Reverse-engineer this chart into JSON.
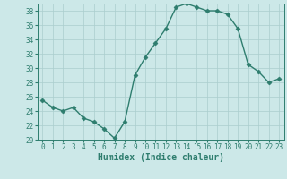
{
  "x": [
    0,
    1,
    2,
    3,
    4,
    5,
    6,
    7,
    8,
    9,
    10,
    11,
    12,
    13,
    14,
    15,
    16,
    17,
    18,
    19,
    20,
    21,
    22,
    23
  ],
  "y": [
    25.5,
    24.5,
    24.0,
    24.5,
    23.0,
    22.5,
    21.5,
    20.2,
    22.5,
    29.0,
    31.5,
    33.5,
    35.5,
    38.5,
    39.0,
    38.5,
    38.0,
    38.0,
    37.5,
    35.5,
    30.5,
    29.5,
    28.0,
    28.5
  ],
  "line_color": "#2e7d6e",
  "marker": "D",
  "markersize": 2.5,
  "linewidth": 1.0,
  "bg_color": "#cce8e8",
  "grid_color": "#aacece",
  "xlabel": "Humidex (Indice chaleur)",
  "ylim": [
    20,
    39
  ],
  "yticks": [
    20,
    22,
    24,
    26,
    28,
    30,
    32,
    34,
    36,
    38
  ],
  "xticks": [
    0,
    1,
    2,
    3,
    4,
    5,
    6,
    7,
    8,
    9,
    10,
    11,
    12,
    13,
    14,
    15,
    16,
    17,
    18,
    19,
    20,
    21,
    22,
    23
  ],
  "tick_fontsize": 5.5,
  "label_fontsize": 7.0,
  "tick_color": "#2e7d6e",
  "spine_color": "#2e7d6e"
}
